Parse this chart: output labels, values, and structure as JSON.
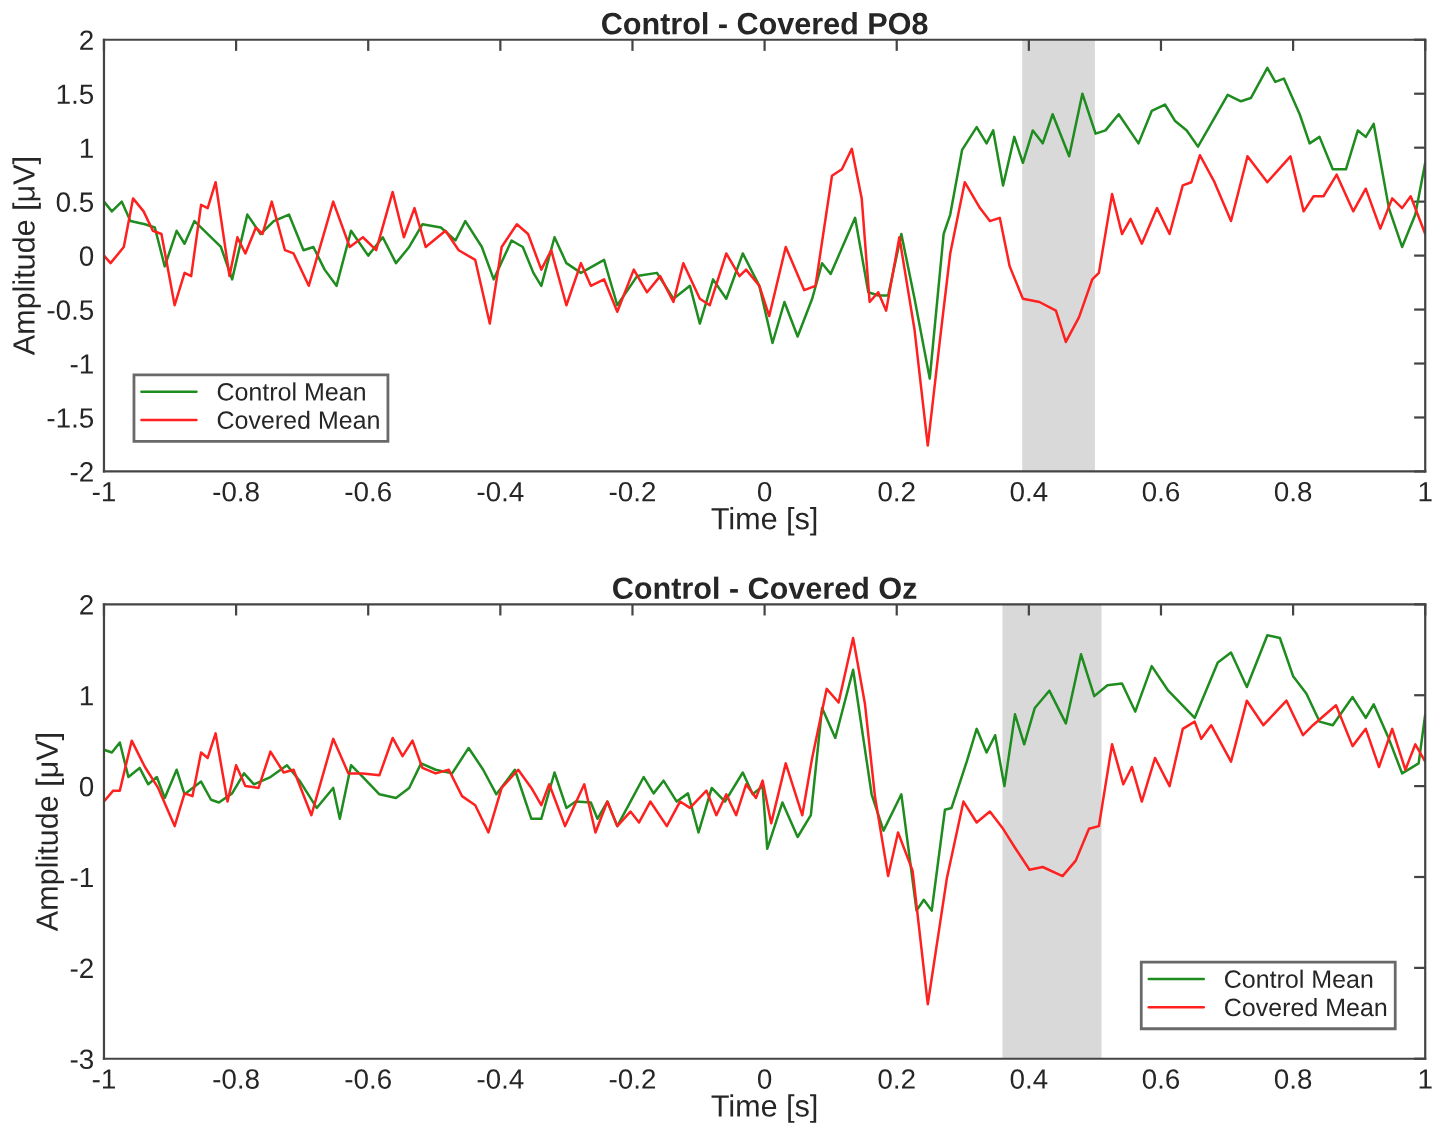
{
  "chart_data": [
    {
      "type": "line",
      "title": "Control - Covered PO8",
      "xlabel": "Time [s]",
      "ylabel": "Amplitude [μV]",
      "xlim": [
        -1,
        1
      ],
      "ylim": [
        -2,
        2
      ],
      "xticks": [
        -1,
        -0.8,
        -0.6,
        -0.4,
        -0.2,
        0,
        0.2,
        0.4,
        0.6,
        0.8,
        1
      ],
      "yticks": [
        -2,
        -1.5,
        -1,
        -0.5,
        0,
        0.5,
        1,
        1.5,
        2
      ],
      "grid": false,
      "legend": "bottom left",
      "line_style": "solid",
      "marker": "none",
      "bands": [
        {
          "axis": "x",
          "from": 0.39,
          "to": 0.5,
          "color": "#d9d9d9"
        }
      ],
      "series": [
        {
          "name": "Control Mean",
          "color": "#1e8c1e",
          "x": [
            -1,
            -0.988,
            -0.973,
            -0.96,
            -0.938,
            -0.923,
            -0.908,
            -0.89,
            -0.878,
            -0.863,
            -0.823,
            -0.806,
            -0.783,
            -0.763,
            -0.743,
            -0.72,
            -0.698,
            -0.683,
            -0.666,
            -0.648,
            -0.626,
            -0.6,
            -0.578,
            -0.558,
            -0.538,
            -0.518,
            -0.49,
            -0.468,
            -0.453,
            -0.428,
            -0.41,
            -0.383,
            -0.366,
            -0.35,
            -0.338,
            -0.318,
            -0.3,
            -0.278,
            -0.243,
            -0.223,
            -0.193,
            -0.163,
            -0.138,
            -0.113,
            -0.098,
            -0.078,
            -0.058,
            -0.033,
            -0.008,
            0.012,
            0.03,
            0.05,
            0.072,
            0.087,
            0.1,
            0.137,
            0.157,
            0.172,
            0.187,
            0.207,
            0.227,
            0.25,
            0.271,
            0.281,
            0.299,
            0.321,
            0.336,
            0.346,
            0.361,
            0.378,
            0.391,
            0.406,
            0.421,
            0.436,
            0.461,
            0.481,
            0.501,
            0.516,
            0.536,
            0.566,
            0.586,
            0.606,
            0.621,
            0.639,
            0.656,
            0.701,
            0.721,
            0.736,
            0.761,
            0.773,
            0.786,
            0.81,
            0.825,
            0.84,
            0.86,
            0.88,
            0.898,
            0.91,
            0.922,
            0.945,
            0.965,
            0.985,
            1.0
          ],
          "values": [
            0.5,
            0.41,
            0.5,
            0.32,
            0.29,
            0.26,
            -0.1,
            0.23,
            0.11,
            0.32,
            0.08,
            -0.22,
            0.38,
            0.2,
            0.32,
            0.38,
            0.05,
            0.08,
            -0.13,
            -0.28,
            0.23,
            0.0,
            0.17,
            -0.07,
            0.08,
            0.29,
            0.26,
            0.14,
            0.32,
            0.08,
            -0.22,
            0.14,
            0.08,
            -0.16,
            -0.28,
            0.17,
            -0.07,
            -0.16,
            -0.04,
            -0.46,
            -0.19,
            -0.16,
            -0.4,
            -0.28,
            -0.63,
            -0.22,
            -0.4,
            0.02,
            -0.28,
            -0.81,
            -0.43,
            -0.75,
            -0.4,
            -0.07,
            -0.17,
            0.35,
            -0.34,
            -0.37,
            -0.37,
            0.2,
            -0.4,
            -1.14,
            0.2,
            0.38,
            0.98,
            1.19,
            1.04,
            1.16,
            0.65,
            1.1,
            0.86,
            1.16,
            1.04,
            1.31,
            0.92,
            1.5,
            1.13,
            1.16,
            1.31,
            1.04,
            1.34,
            1.4,
            1.25,
            1.16,
            1.01,
            1.49,
            1.43,
            1.46,
            1.74,
            1.61,
            1.64,
            1.31,
            1.04,
            1.1,
            0.8,
            0.8,
            1.16,
            1.1,
            1.22,
            0.44,
            0.08,
            0.38,
            0.86
          ]
        },
        {
          "name": "Covered Mean",
          "color": "#ff2020",
          "x": [
            -1,
            -0.99,
            -0.97,
            -0.956,
            -0.94,
            -0.926,
            -0.913,
            -0.893,
            -0.878,
            -0.868,
            -0.853,
            -0.843,
            -0.831,
            -0.81,
            -0.798,
            -0.786,
            -0.77,
            -0.76,
            -0.746,
            -0.726,
            -0.713,
            -0.69,
            -0.653,
            -0.628,
            -0.608,
            -0.588,
            -0.563,
            -0.546,
            -0.53,
            -0.513,
            -0.483,
            -0.463,
            -0.438,
            -0.416,
            -0.398,
            -0.375,
            -0.358,
            -0.338,
            -0.323,
            -0.3,
            -0.278,
            -0.263,
            -0.243,
            -0.223,
            -0.198,
            -0.178,
            -0.158,
            -0.138,
            -0.123,
            -0.098,
            -0.083,
            -0.058,
            -0.038,
            -0.028,
            -0.008,
            0.007,
            0.032,
            0.06,
            0.077,
            0.102,
            0.117,
            0.132,
            0.147,
            0.159,
            0.172,
            0.184,
            0.204,
            0.227,
            0.247,
            0.266,
            0.281,
            0.303,
            0.326,
            0.341,
            0.356,
            0.371,
            0.391,
            0.416,
            0.441,
            0.456,
            0.476,
            0.496,
            0.506,
            0.526,
            0.541,
            0.554,
            0.571,
            0.594,
            0.613,
            0.633,
            0.646,
            0.659,
            0.681,
            0.706,
            0.731,
            0.761,
            0.796,
            0.816,
            0.831,
            0.846,
            0.866,
            0.891,
            0.91,
            0.932,
            0.95,
            0.965,
            0.978,
            1.0
          ],
          "values": [
            0.0,
            -0.07,
            0.08,
            0.53,
            0.41,
            0.23,
            0.2,
            -0.46,
            -0.16,
            -0.19,
            0.47,
            0.44,
            0.68,
            -0.19,
            0.17,
            0.02,
            0.26,
            0.2,
            0.5,
            0.05,
            0.02,
            -0.28,
            0.5,
            0.08,
            0.17,
            0.05,
            0.59,
            0.17,
            0.44,
            0.08,
            0.23,
            0.05,
            -0.04,
            -0.63,
            0.08,
            0.29,
            0.2,
            -0.13,
            0.05,
            -0.46,
            -0.07,
            -0.28,
            -0.22,
            -0.52,
            -0.13,
            -0.34,
            -0.19,
            -0.43,
            -0.07,
            -0.4,
            -0.46,
            0.02,
            -0.19,
            -0.13,
            -0.28,
            -0.56,
            0.08,
            -0.32,
            -0.28,
            0.74,
            0.8,
            0.99,
            0.53,
            -0.43,
            -0.34,
            -0.51,
            0.17,
            -0.69,
            -1.76,
            -0.75,
            0.02,
            0.68,
            0.44,
            0.32,
            0.35,
            -0.1,
            -0.4,
            -0.43,
            -0.51,
            -0.8,
            -0.57,
            -0.22,
            -0.16,
            0.57,
            0.2,
            0.34,
            0.11,
            0.44,
            0.2,
            0.65,
            0.68,
            0.93,
            0.68,
            0.32,
            0.92,
            0.68,
            0.92,
            0.41,
            0.55,
            0.55,
            0.75,
            0.41,
            0.62,
            0.25,
            0.53,
            0.44,
            0.55,
            0.2
          ]
        }
      ]
    },
    {
      "type": "line",
      "title": "Control - Covered Oz",
      "xlabel": "Time [s]",
      "ylabel": "Amplitude [μV]",
      "xlim": [
        -1,
        1
      ],
      "ylim": [
        -3,
        2
      ],
      "xticks": [
        -1,
        -0.8,
        -0.6,
        -0.4,
        -0.2,
        0,
        0.2,
        0.4,
        0.6,
        0.8,
        1
      ],
      "yticks": [
        -3,
        -2,
        -1,
        0,
        1,
        2
      ],
      "grid": false,
      "legend": "bottom right",
      "line_style": "solid",
      "marker": "none",
      "bands": [
        {
          "axis": "x",
          "from": 0.36,
          "to": 0.51,
          "color": "#d9d9d9"
        }
      ],
      "series": [
        {
          "name": "Control Mean",
          "color": "#1e8c1e",
          "x": [
            -1,
            -0.988,
            -0.976,
            -0.963,
            -0.946,
            -0.933,
            -0.92,
            -0.908,
            -0.89,
            -0.878,
            -0.853,
            -0.838,
            -0.826,
            -0.806,
            -0.788,
            -0.773,
            -0.748,
            -0.723,
            -0.703,
            -0.678,
            -0.653,
            -0.643,
            -0.626,
            -0.608,
            -0.583,
            -0.558,
            -0.538,
            -0.52,
            -0.498,
            -0.473,
            -0.448,
            -0.426,
            -0.406,
            -0.378,
            -0.353,
            -0.338,
            -0.318,
            -0.3,
            -0.286,
            -0.263,
            -0.253,
            -0.238,
            -0.223,
            -0.203,
            -0.183,
            -0.168,
            -0.153,
            -0.133,
            -0.116,
            -0.1,
            -0.08,
            -0.06,
            -0.033,
            -0.018,
            -0.003,
            0.004,
            0.027,
            0.05,
            0.07,
            0.087,
            0.107,
            0.134,
            0.162,
            0.18,
            0.207,
            0.23,
            0.241,
            0.253,
            0.273,
            0.283,
            0.306,
            0.321,
            0.336,
            0.349,
            0.363,
            0.379,
            0.393,
            0.409,
            0.431,
            0.456,
            0.479,
            0.499,
            0.519,
            0.541,
            0.561,
            0.586,
            0.611,
            0.651,
            0.686,
            0.706,
            0.73,
            0.761,
            0.78,
            0.8,
            0.82,
            0.84,
            0.86,
            0.89,
            0.91,
            0.922,
            0.945,
            0.965,
            0.99,
            1.0
          ],
          "values": [
            0.4,
            0.37,
            0.48,
            0.1,
            0.2,
            0.02,
            0.1,
            -0.13,
            0.18,
            -0.09,
            0.05,
            -0.15,
            -0.18,
            -0.08,
            0.14,
            0.02,
            0.1,
            0.23,
            0.05,
            -0.24,
            -0.02,
            -0.36,
            0.23,
            0.1,
            -0.09,
            -0.13,
            -0.02,
            0.25,
            0.18,
            0.14,
            0.42,
            0.18,
            -0.09,
            0.18,
            -0.36,
            -0.36,
            0.15,
            -0.24,
            -0.17,
            -0.18,
            -0.36,
            -0.17,
            -0.44,
            -0.17,
            0.1,
            -0.08,
            0.06,
            -0.17,
            -0.08,
            -0.51,
            -0.02,
            -0.17,
            0.15,
            -0.09,
            0.0,
            -0.69,
            -0.18,
            -0.56,
            -0.32,
            0.86,
            0.53,
            1.28,
            -0.09,
            -0.49,
            -0.09,
            -1.37,
            -1.25,
            -1.37,
            -0.26,
            -0.24,
            0.27,
            0.63,
            0.37,
            0.56,
            0.0,
            0.79,
            0.46,
            0.86,
            1.05,
            0.69,
            1.45,
            0.99,
            1.11,
            1.13,
            0.82,
            1.32,
            1.05,
            0.75,
            1.36,
            1.47,
            1.09,
            1.66,
            1.63,
            1.21,
            1.02,
            0.71,
            0.67,
            0.98,
            0.75,
            0.9,
            0.52,
            0.14,
            0.25,
            0.79
          ]
        },
        {
          "name": "Covered Mean",
          "color": "#ff2020",
          "x": [
            -1,
            -0.986,
            -0.976,
            -0.958,
            -0.938,
            -0.918,
            -0.893,
            -0.878,
            -0.866,
            -0.853,
            -0.843,
            -0.831,
            -0.813,
            -0.8,
            -0.786,
            -0.766,
            -0.748,
            -0.728,
            -0.713,
            -0.686,
            -0.653,
            -0.63,
            -0.608,
            -0.583,
            -0.563,
            -0.548,
            -0.533,
            -0.518,
            -0.498,
            -0.478,
            -0.458,
            -0.438,
            -0.418,
            -0.398,
            -0.373,
            -0.353,
            -0.338,
            -0.326,
            -0.302,
            -0.273,
            -0.256,
            -0.238,
            -0.223,
            -0.203,
            -0.19,
            -0.173,
            -0.148,
            -0.128,
            -0.113,
            -0.088,
            -0.073,
            -0.058,
            -0.043,
            -0.028,
            -0.013,
            -0.003,
            0.01,
            0.032,
            0.057,
            0.072,
            0.094,
            0.112,
            0.134,
            0.152,
            0.167,
            0.187,
            0.202,
            0.224,
            0.247,
            0.276,
            0.301,
            0.321,
            0.341,
            0.361,
            0.381,
            0.401,
            0.421,
            0.451,
            0.471,
            0.491,
            0.506,
            0.526,
            0.543,
            0.556,
            0.571,
            0.591,
            0.613,
            0.633,
            0.651,
            0.661,
            0.676,
            0.706,
            0.73,
            0.755,
            0.79,
            0.815,
            0.83,
            0.865,
            0.89,
            0.91,
            0.93,
            0.95,
            0.97,
            0.985,
            1.0
          ],
          "values": [
            -0.17,
            -0.05,
            -0.05,
            0.5,
            0.21,
            -0.02,
            -0.44,
            -0.08,
            -0.11,
            0.37,
            0.31,
            0.58,
            -0.17,
            0.23,
            0.0,
            -0.02,
            0.38,
            0.15,
            0.18,
            -0.32,
            0.52,
            0.14,
            0.14,
            0.12,
            0.53,
            0.33,
            0.5,
            0.2,
            0.14,
            0.18,
            -0.11,
            -0.21,
            -0.51,
            -0.02,
            0.18,
            -0.02,
            -0.21,
            0.02,
            -0.44,
            0.02,
            -0.51,
            -0.17,
            -0.44,
            -0.28,
            -0.4,
            -0.17,
            -0.44,
            -0.17,
            -0.24,
            -0.05,
            -0.32,
            -0.09,
            -0.32,
            0.02,
            -0.13,
            0.06,
            -0.41,
            0.25,
            -0.32,
            0.31,
            1.07,
            0.92,
            1.63,
            0.9,
            -0.11,
            -0.99,
            -0.51,
            -0.93,
            -2.4,
            -1.01,
            -0.17,
            -0.4,
            -0.28,
            -0.47,
            -0.7,
            -0.92,
            -0.89,
            -0.99,
            -0.82,
            -0.47,
            -0.44,
            0.46,
            0.02,
            0.21,
            -0.17,
            0.31,
            0.0,
            0.63,
            0.71,
            0.52,
            0.67,
            0.27,
            0.94,
            0.67,
            0.94,
            0.56,
            0.67,
            0.89,
            0.44,
            0.63,
            0.21,
            0.63,
            0.18,
            0.46,
            0.27
          ]
        }
      ]
    }
  ]
}
